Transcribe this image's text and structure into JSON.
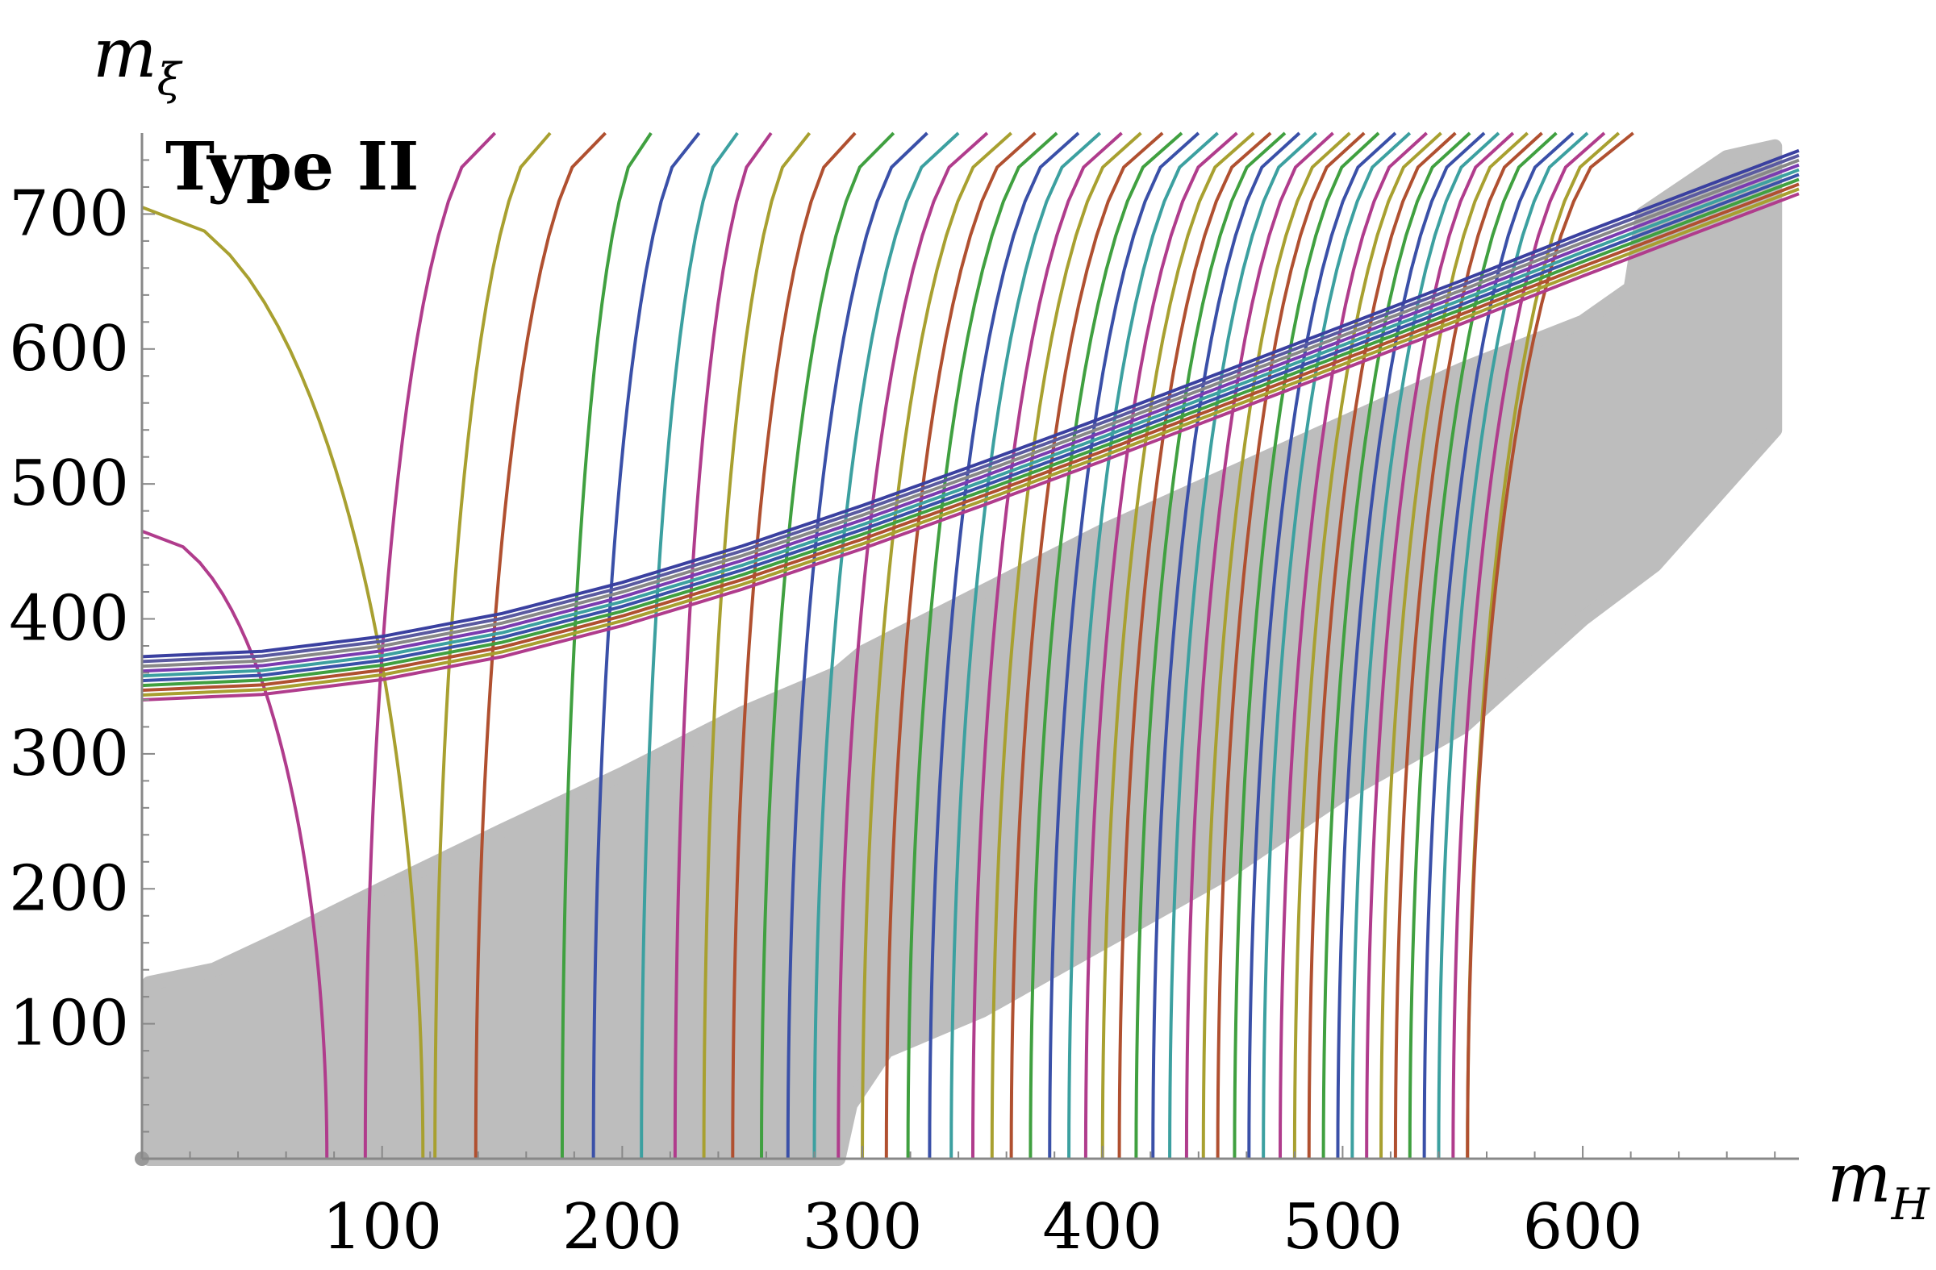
{
  "chart_data": {
    "type": "line",
    "panel_label": "Type II",
    "xlabel": {
      "main": "m",
      "sub": "H"
    },
    "ylabel": {
      "main": "m",
      "sub": "ξ"
    },
    "xlim": [
      0,
      690
    ],
    "ylim": [
      0,
      760
    ],
    "x_ticks": [
      100,
      200,
      300,
      400,
      500,
      600
    ],
    "y_ticks": [
      100,
      200,
      300,
      400,
      500,
      600,
      700
    ],
    "grid": false,
    "legend": "none",
    "colors": [
      "#b03c8c",
      "#a8a030",
      "#b05030",
      "#40a040",
      "#3a50a8",
      "#3ca0a0"
    ],
    "band": {
      "color": "#888888",
      "curves": 10,
      "lower_edge": [
        [
          0,
          340
        ],
        [
          50,
          344
        ],
        [
          100,
          355
        ],
        [
          150,
          372
        ],
        [
          200,
          395
        ],
        [
          250,
          422
        ],
        [
          300,
          452
        ],
        [
          350,
          484
        ],
        [
          400,
          517
        ],
        [
          450,
          551
        ],
        [
          500,
          585
        ],
        [
          550,
          619
        ],
        [
          600,
          654
        ],
        [
          650,
          688
        ],
        [
          690,
          715
        ]
      ],
      "thickness": 32
    },
    "excluded_region": {
      "color": "#bdbdbd",
      "upper_edge": [
        [
          3,
          130
        ],
        [
          30,
          140
        ],
        [
          60,
          165
        ],
        [
          100,
          200
        ],
        [
          150,
          243
        ],
        [
          200,
          285
        ],
        [
          250,
          330
        ],
        [
          290,
          360
        ],
        [
          300,
          375
        ],
        [
          350,
          420
        ],
        [
          400,
          465
        ],
        [
          450,
          505
        ],
        [
          500,
          545
        ],
        [
          550,
          585
        ],
        [
          600,
          620
        ],
        [
          620,
          645
        ],
        [
          625,
          700
        ],
        [
          660,
          742
        ],
        [
          680,
          750
        ]
      ],
      "lower_edge": [
        [
          3,
          0
        ],
        [
          290,
          0
        ],
        [
          295,
          40
        ],
        [
          310,
          80
        ],
        [
          350,
          110
        ],
        [
          400,
          160
        ],
        [
          450,
          210
        ],
        [
          500,
          270
        ],
        [
          550,
          320
        ],
        [
          600,
          400
        ],
        [
          630,
          440
        ],
        [
          680,
          540
        ]
      ]
    },
    "contours": {
      "upper_curved": [
        {
          "start": [
            0,
            465
          ],
          "end": [
            77,
            0
          ]
        },
        {
          "start": [
            0,
            705
          ],
          "end": [
            117,
            0
          ]
        }
      ],
      "vertical_x_at_bottom": [
        147,
        170,
        193,
        212,
        232,
        248,
        262,
        278,
        297,
        313,
        327,
        340,
        352,
        362,
        372,
        381,
        390,
        399,
        408,
        416,
        425,
        433,
        440,
        448,
        456,
        463,
        470,
        476,
        482,
        489,
        496,
        503,
        509,
        515,
        522,
        528,
        535,
        541,
        547,
        553,
        559,
        565,
        571,
        577,
        583,
        589,
        596,
        602,
        609,
        615,
        621
      ],
      "top_start_x": [
        93,
        122,
        139,
        175,
        188,
        208,
        222,
        234,
        246,
        258,
        269,
        280,
        290,
        300,
        310,
        319,
        328,
        337,
        346,
        354,
        362,
        370,
        378,
        386,
        393,
        400,
        407,
        414,
        421,
        428,
        435,
        442,
        448,
        455,
        461,
        467,
        474,
        480,
        486,
        492,
        498,
        504,
        510,
        516,
        522,
        528,
        534,
        540,
        546,
        552
      ]
    }
  }
}
